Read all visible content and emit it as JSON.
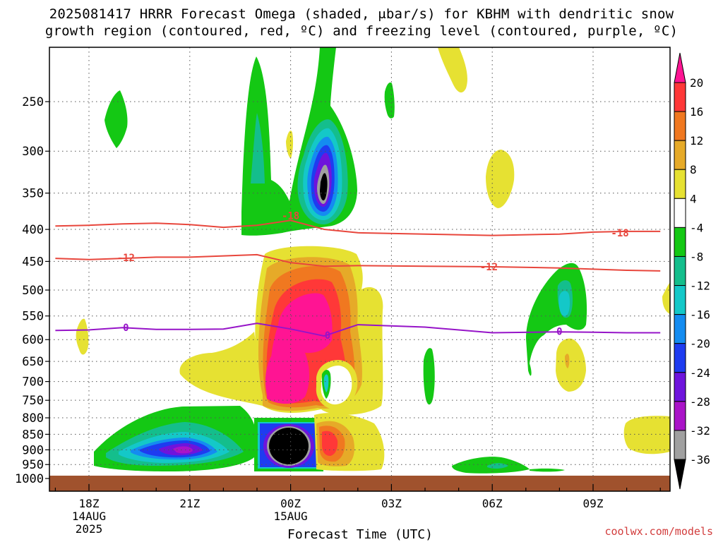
{
  "title": {
    "line1": "2025081417 HRRR Forecast Omega (shaded, μbar/s) for KBHM with dendritic snow",
    "line2": "growth region (contoured, red, ºC) and freezing level (contoured, purple, ºC)"
  },
  "credit": "coolwx.com/models",
  "chart_data": {
    "type": "heatmap",
    "xlabel": "Forecast Time (UTC)",
    "x_ticks": [
      {
        "value": 18,
        "label": "18Z",
        "sub1": "14AUG",
        "sub2": "2025"
      },
      {
        "value": 21,
        "label": "21Z",
        "sub1": "",
        "sub2": ""
      },
      {
        "value": 24,
        "label": "00Z",
        "sub1": "15AUG",
        "sub2": ""
      },
      {
        "value": 27,
        "label": "03Z",
        "sub1": "",
        "sub2": ""
      },
      {
        "value": 30,
        "label": "06Z",
        "sub1": "",
        "sub2": ""
      },
      {
        "value": 33,
        "label": "09Z",
        "sub1": "",
        "sub2": ""
      }
    ],
    "xlim": [
      17,
      35
    ],
    "y_ticks": [
      250,
      300,
      350,
      400,
      450,
      500,
      550,
      600,
      650,
      700,
      750,
      800,
      850,
      900,
      950,
      1000
    ],
    "ylim": [
      200,
      1025
    ],
    "y_scale": "log-pressure (inverted)",
    "colorbar": {
      "levels": [
        20,
        16,
        12,
        8,
        4,
        -4,
        -8,
        -12,
        -16,
        -20,
        -24,
        -28,
        -32,
        -36
      ],
      "colors": [
        "#ff1493",
        "#ff3838",
        "#f07820",
        "#e6aa28",
        "#e6e132",
        "#ffffff",
        "#14c814",
        "#14be8c",
        "#14c8c8",
        "#148cf0",
        "#1e3cf0",
        "#6e14dc",
        "#aa14c8",
        "#a0a0a0",
        "#000000"
      ]
    },
    "contours": [
      {
        "label": "-18",
        "color": "#e8463c",
        "points": [
          [
            17,
            395
          ],
          [
            18,
            394
          ],
          [
            19,
            392
          ],
          [
            20,
            391
          ],
          [
            21,
            393
          ],
          [
            22,
            397
          ],
          [
            23,
            394
          ],
          [
            24,
            387
          ],
          [
            25,
            400
          ],
          [
            26,
            405
          ],
          [
            28,
            407
          ],
          [
            30,
            409
          ],
          [
            32,
            407
          ],
          [
            33,
            404
          ],
          [
            34,
            403
          ],
          [
            35,
            403
          ]
        ],
        "label_at": [
          [
            24,
            380
          ],
          [
            33.8,
            405
          ]
        ],
        "label_texts": [
          "-18",
          "-18"
        ]
      },
      {
        "label": "-12",
        "color": "#e8463c",
        "points": [
          [
            17,
            445
          ],
          [
            18,
            447
          ],
          [
            19,
            445
          ],
          [
            20,
            443
          ],
          [
            21,
            443
          ],
          [
            22,
            441
          ],
          [
            23,
            439
          ],
          [
            24,
            452
          ],
          [
            25,
            458
          ],
          [
            26,
            457
          ],
          [
            28,
            458
          ],
          [
            30,
            459
          ],
          [
            32,
            461
          ],
          [
            33,
            463
          ],
          [
            34,
            465
          ],
          [
            35,
            466
          ]
        ],
        "label_at": [
          [
            19.1,
            444
          ],
          [
            29.9,
            459
          ]
        ],
        "label_texts": [
          "-12",
          "-12"
        ]
      },
      {
        "label": "0",
        "color": "#9614c8",
        "points": [
          [
            17,
            580
          ],
          [
            18,
            579
          ],
          [
            19,
            574
          ],
          [
            20,
            578
          ],
          [
            21,
            578
          ],
          [
            22,
            577
          ],
          [
            23,
            565
          ],
          [
            24,
            577
          ],
          [
            25,
            592
          ],
          [
            26,
            568
          ],
          [
            28,
            573
          ],
          [
            30,
            585
          ],
          [
            32,
            583
          ],
          [
            33,
            584
          ],
          [
            34,
            585
          ],
          [
            35,
            585
          ]
        ],
        "label_at": [
          [
            19.1,
            574
          ],
          [
            25.1,
            590
          ],
          [
            32.0,
            582
          ]
        ],
        "label_texts": [
          "0",
          "0",
          "0"
        ]
      }
    ]
  }
}
